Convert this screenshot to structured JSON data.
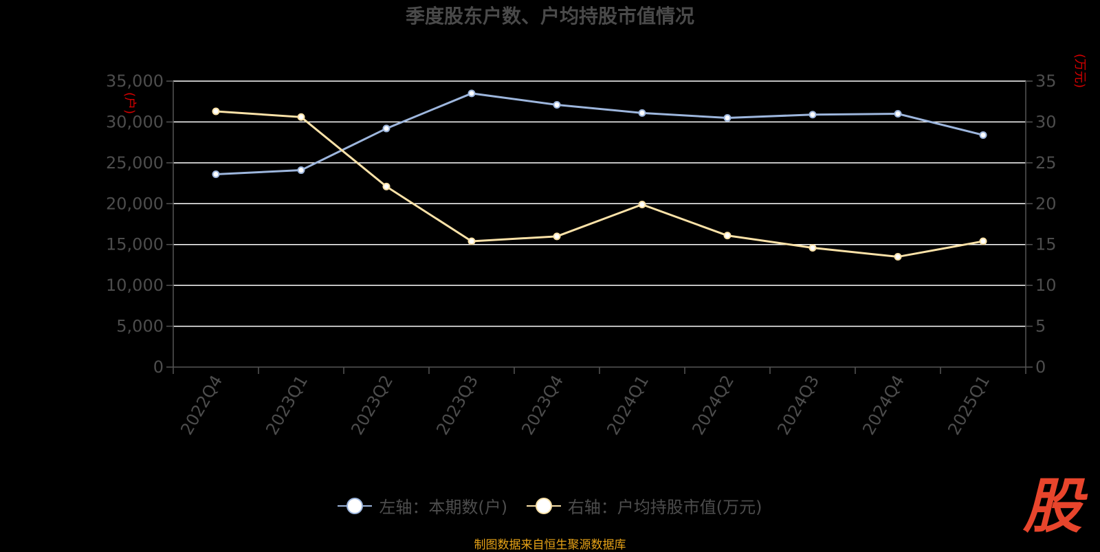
{
  "title": "季度股东户数、户均持股市值情况",
  "source": "制图数据来自恒生聚源数据库",
  "logo_text": "股",
  "colors": {
    "background": "#000000",
    "holders": "#9db6dd",
    "value": "#fbe2a8",
    "grid": "#ffffff",
    "axis_text": "#4d4d4d",
    "unit_text": "#d40000",
    "source_text": "#e8a317",
    "logo": "#e8452c"
  },
  "chart_data": {
    "type": "line",
    "title": "季度股东户数、户均持股市值情况",
    "categories": [
      "2022Q4",
      "2023Q1",
      "2023Q2",
      "2023Q3",
      "2023Q4",
      "2024Q1",
      "2024Q2",
      "2024Q3",
      "2024Q4",
      "2025Q1"
    ],
    "y_left": {
      "unit": "(户)",
      "min": 0,
      "max": 35000,
      "ticks": [
        0,
        5000,
        10000,
        15000,
        20000,
        25000,
        30000,
        35000
      ],
      "tick_labels": [
        "0",
        "5,000",
        "10,000",
        "15,000",
        "20,000",
        "25,000",
        "30,000",
        "35,000"
      ]
    },
    "y_right": {
      "unit": "(万元)",
      "min": 0,
      "max": 35,
      "ticks": [
        0,
        5,
        10,
        15,
        20,
        25,
        30,
        35
      ],
      "tick_labels": [
        "0",
        "5",
        "10",
        "15",
        "20",
        "25",
        "30",
        "35"
      ]
    },
    "grid": true,
    "legend_position": "bottom",
    "series": [
      {
        "name": "左轴：本期数(户)",
        "axis": "left",
        "values": [
          23600,
          24100,
          29200,
          33500,
          32100,
          31100,
          30500,
          30900,
          31000,
          28400
        ]
      },
      {
        "name": "右轴：户均持股市值(万元)",
        "axis": "right",
        "values": [
          31.3,
          30.6,
          22.1,
          15.4,
          16.0,
          19.9,
          16.1,
          14.6,
          13.5,
          15.4
        ]
      }
    ]
  }
}
